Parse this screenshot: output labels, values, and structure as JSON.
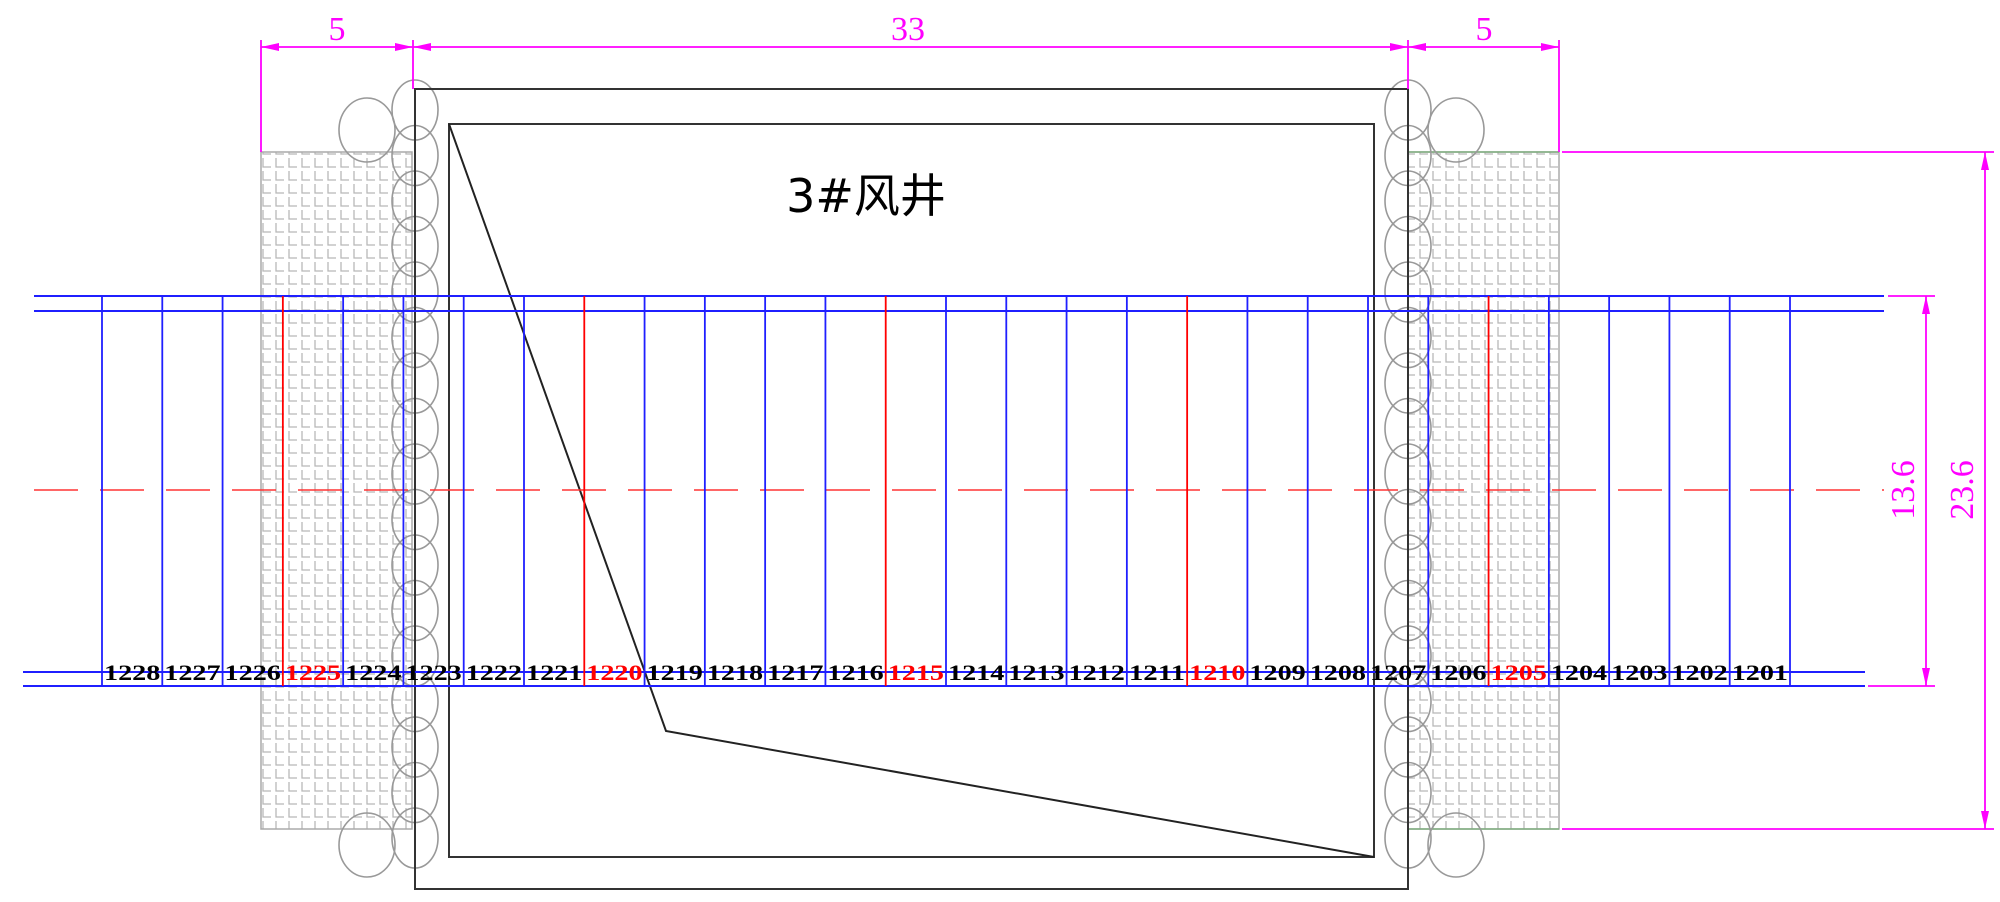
{
  "title": "3#风井",
  "dimensions": {
    "left_width": "5",
    "middle_width": "33",
    "right_width": "5",
    "inner_height": "13.6",
    "outer_height": "23.6"
  },
  "segments": [
    {
      "label": "1228",
      "highlight": false
    },
    {
      "label": "1227",
      "highlight": false
    },
    {
      "label": "1226",
      "highlight": false
    },
    {
      "label": "1225",
      "highlight": true
    },
    {
      "label": "1224",
      "highlight": false
    },
    {
      "label": "1223",
      "highlight": false
    },
    {
      "label": "1222",
      "highlight": false
    },
    {
      "label": "1221",
      "highlight": false
    },
    {
      "label": "1220",
      "highlight": true
    },
    {
      "label": "1219",
      "highlight": false
    },
    {
      "label": "1218",
      "highlight": false
    },
    {
      "label": "1217",
      "highlight": false
    },
    {
      "label": "1216",
      "highlight": false
    },
    {
      "label": "1215",
      "highlight": true
    },
    {
      "label": "1214",
      "highlight": false
    },
    {
      "label": "1213",
      "highlight": false
    },
    {
      "label": "1212",
      "highlight": false
    },
    {
      "label": "1211",
      "highlight": false
    },
    {
      "label": "1210",
      "highlight": true
    },
    {
      "label": "1209",
      "highlight": false
    },
    {
      "label": "1208",
      "highlight": false
    },
    {
      "label": "1207",
      "highlight": false
    },
    {
      "label": "1206",
      "highlight": false
    },
    {
      "label": "1205",
      "highlight": true
    },
    {
      "label": "1204",
      "highlight": false
    },
    {
      "label": "1203",
      "highlight": false
    },
    {
      "label": "1202",
      "highlight": false
    },
    {
      "label": "1201",
      "highlight": false
    }
  ],
  "colors": {
    "dimension": "#ff00ff",
    "segment_line": "#1f1fff",
    "highlight": "#ff0000",
    "centerline": "#ff3333",
    "structure": "#333333",
    "pile": "#999999",
    "mesh": "#b0b0b0"
  }
}
